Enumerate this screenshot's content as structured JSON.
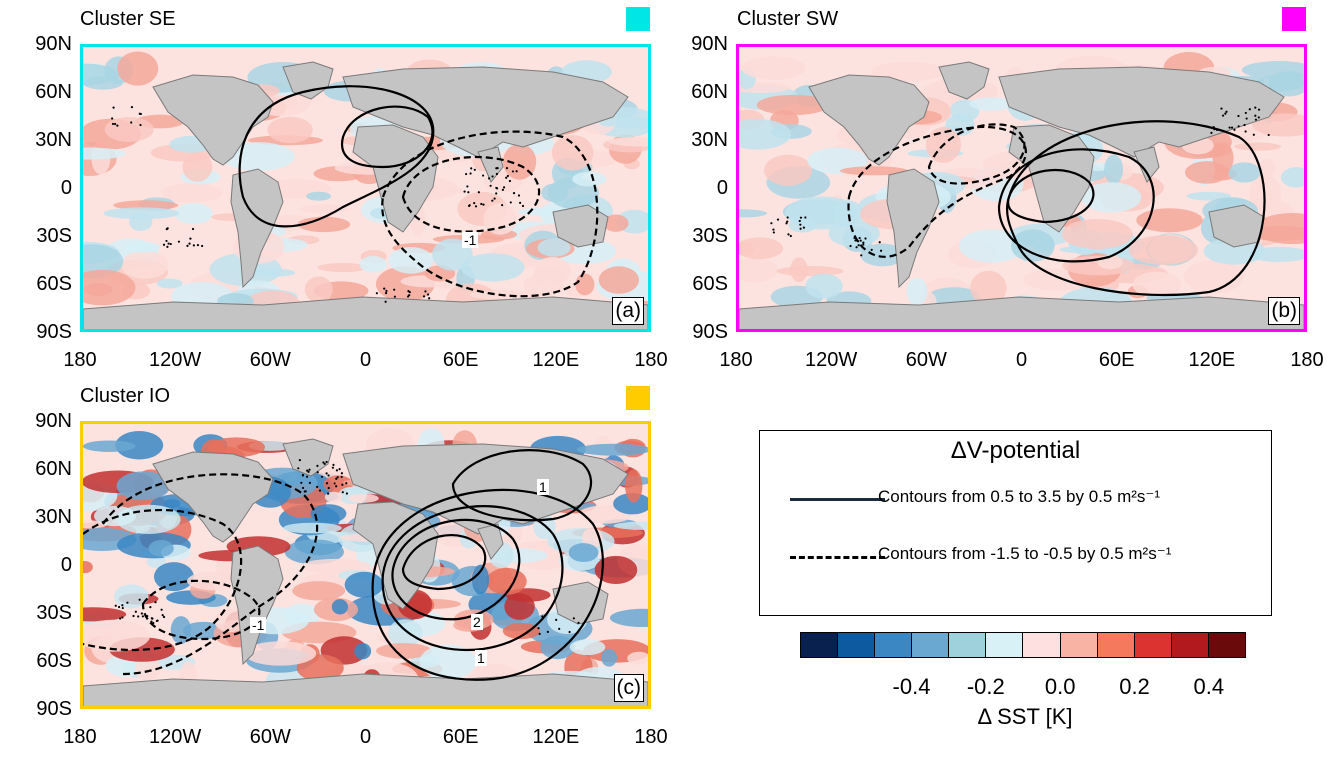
{
  "panels": [
    {
      "title": "Cluster SE",
      "tag": "(a)",
      "color": "#00e5e5"
    },
    {
      "title": "Cluster SW",
      "tag": "(b)",
      "color": "#ff00ff"
    },
    {
      "title": "Cluster IO",
      "tag": "(c)",
      "color": "#ffcc00"
    }
  ],
  "lat_labels": [
    "90N",
    "60N",
    "30N",
    "0",
    "30S",
    "60S",
    "90S"
  ],
  "lon_labels": [
    "180",
    "120W",
    "60W",
    "0",
    "60E",
    "120E",
    "180"
  ],
  "contour_labels": {
    "a_neg": "-1",
    "c_pos1": "1",
    "c_pos2": "2",
    "c_pos3": "1",
    "c_neg": "-1"
  },
  "legend": {
    "title": "ΔV-potential",
    "solid": "Contours from 0.5 to 3.5 by 0.5 m²s⁻¹",
    "dashed": "Contours from -1.5 to -0.5 by 0.5 m²s⁻¹"
  },
  "colorbar": {
    "colors": [
      "#08214e",
      "#0d5aa0",
      "#3a87c4",
      "#6aa8d2",
      "#9fd1dc",
      "#d8f1f7",
      "#fde0df",
      "#f9b3a5",
      "#f4795d",
      "#dd3330",
      "#b2191f",
      "#6b0a0a"
    ],
    "ticks": [
      "-0.4",
      "-0.2",
      "0.0",
      "0.2",
      "0.4"
    ],
    "label": "Δ  SST [K]"
  }
}
